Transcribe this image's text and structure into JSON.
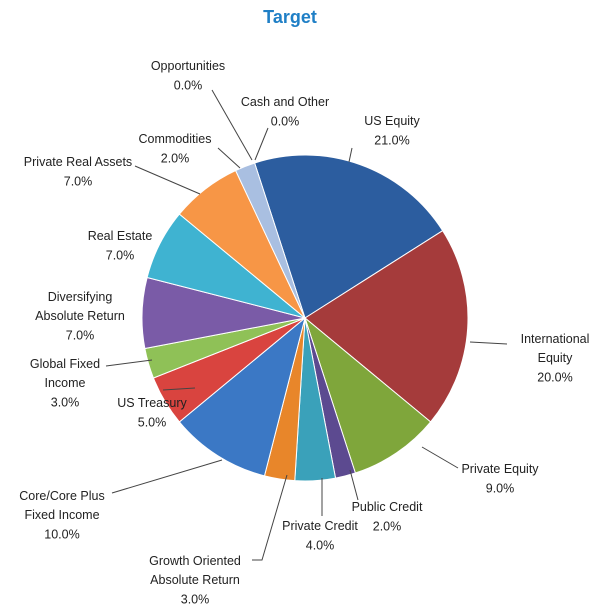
{
  "chart_data": {
    "type": "pie",
    "title": "Target",
    "categories": [
      "US Equity",
      "International Equity",
      "Private Equity",
      "Public Credit",
      "Private Credit",
      "Growth Oriented Absolute Return",
      "Core/Core Plus Fixed Income",
      "US Treasury",
      "Global Fixed Income",
      "Diversifying Absolute Return",
      "Real Estate",
      "Private Real Assets",
      "Commodities",
      "Opportunities",
      "Cash and Other *"
    ],
    "values": [
      21,
      20,
      9,
      2,
      4,
      3,
      10,
      5,
      3,
      7,
      7,
      7,
      2,
      0,
      0
    ],
    "value_labels": [
      "21.0%",
      "20.0%",
      "9.0%",
      "2.0%",
      "4.0%",
      "3.0%",
      "10.0%",
      "5.0%",
      "3.0%",
      "7.0%",
      "7.0%",
      "7.0%",
      "2.0%",
      "0.0%",
      "0.0%"
    ],
    "colors": [
      "#2c5d9f",
      "#a53b3b",
      "#7fa63b",
      "#5c4a90",
      "#3aa1ba",
      "#e8862a",
      "#3b78c5",
      "#d9443f",
      "#8fc157",
      "#7a5ba7",
      "#3fb3d1",
      "#f79646",
      "#a9bfe1",
      "#c0c0c0",
      "#c0c0c0"
    ]
  }
}
